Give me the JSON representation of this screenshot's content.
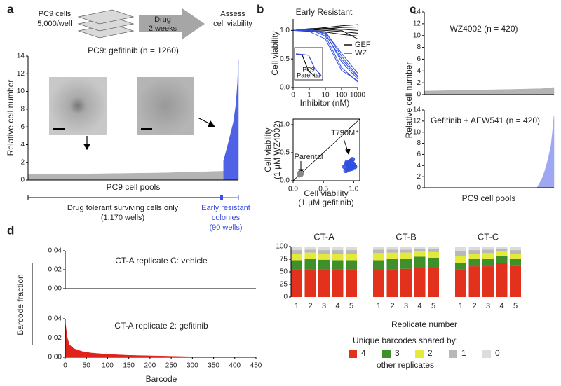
{
  "panel_labels": [
    "a",
    "b",
    "c",
    "d"
  ],
  "diagram": {
    "plate": [
      "PC9 cells",
      "5,000/well"
    ],
    "arrow": [
      "Drug",
      "2 weeks"
    ],
    "assess": [
      "Assess",
      "cell viability"
    ]
  },
  "notes": {
    "tolerant": [
      "Drug tolerant surviving cells only",
      "(1,170 wells)"
    ],
    "resistant": [
      "Early resistant",
      "colonies",
      "(90 wells)"
    ]
  },
  "chart_data": [
    {
      "type": "area",
      "title": "PC9: gefitinib (n = 1260)",
      "ylabel": "Relative cell number",
      "xlabel": "PC9 cell pools",
      "xlim": [
        0,
        1260
      ],
      "ylim": [
        0,
        14
      ],
      "yticks": [
        0,
        2,
        4,
        6,
        8,
        10,
        12,
        14
      ],
      "series": [
        {
          "color": "#b4b4b4",
          "x": [
            0,
            200,
            400,
            600,
            800,
            1000,
            1170
          ],
          "values": [
            0.6,
            0.65,
            0.7,
            0.75,
            0.8,
            0.9,
            1.0
          ]
        },
        {
          "color": "#4f61e6",
          "x": [
            1171,
            1190,
            1210,
            1230,
            1245,
            1255,
            1260
          ],
          "values": [
            2.2,
            3.5,
            5,
            6.5,
            8.5,
            11,
            13.5
          ]
        }
      ]
    },
    {
      "type": "line",
      "title": "Early Resistant",
      "ylabel": "Cell viability",
      "xlabel": "Inhibitor (nM)",
      "categories": [
        "0",
        "1",
        "10",
        "100",
        "1000"
      ],
      "ylim": [
        0,
        1.2
      ],
      "yticks": [
        {
          "value": 0,
          "label": "0.0"
        },
        {
          "value": 0.5,
          "label": "0.5"
        },
        {
          "value": 1,
          "label": "1.0"
        }
      ],
      "series": [
        {
          "name": "GEF",
          "color": "#111111",
          "values": [
            [
              1,
              1.02,
              1.05,
              1.08,
              1.1
            ],
            [
              1,
              1.0,
              1.03,
              1.05,
              1.06
            ],
            [
              1,
              1.01,
              1.0,
              0.98,
              0.95
            ],
            [
              1,
              1.03,
              1.04,
              1.02,
              1.0
            ],
            [
              1,
              0.99,
              0.97,
              0.93,
              0.9
            ],
            [
              1,
              1.02,
              1.02,
              1.0,
              0.85
            ]
          ]
        },
        {
          "name": "WZ",
          "color": "#2f4de0",
          "values": [
            [
              1,
              1.0,
              0.95,
              0.45,
              0.15
            ],
            [
              1,
              1.02,
              0.9,
              0.35,
              0.1
            ],
            [
              1,
              1.0,
              0.98,
              0.55,
              0.2
            ],
            [
              1,
              0.98,
              0.85,
              0.3,
              0.12
            ],
            [
              1,
              1.0,
              0.97,
              0.6,
              0.25
            ],
            [
              1,
              1.03,
              0.93,
              0.5,
              0.18
            ]
          ]
        }
      ]
    },
    {
      "type": "line",
      "annotations": [
        "PC9",
        "Parental"
      ],
      "ylim": [
        0,
        1.2
      ],
      "series": [
        {
          "color": "#111111",
          "values": [
            [
              1,
              0.95,
              0.3,
              0.1,
              0.1
            ]
          ]
        },
        {
          "color": "#2f4de0",
          "values": [
            [
              1,
              0.98,
              0.95,
              0.4,
              0.12
            ]
          ]
        }
      ]
    },
    {
      "type": "scatter",
      "ylabel": [
        "Cell viability",
        "(1 µM WZ4002)"
      ],
      "xlabel": [
        "Cell viability",
        "(1 µM gefitinib)"
      ],
      "annotations": [
        "Parental",
        "T790M⁺"
      ],
      "xlim": [
        0,
        1.1
      ],
      "ylim": [
        0,
        1.1
      ],
      "xticks": [
        {
          "value": 0,
          "label": "0.0"
        },
        {
          "value": 0.5,
          "label": "0.5"
        },
        {
          "value": 1,
          "label": "1.0"
        }
      ],
      "yticks": [
        {
          "value": 0,
          "label": "0.0"
        },
        {
          "value": 0.5,
          "label": "0.5"
        },
        {
          "value": 1,
          "label": "1.0"
        }
      ],
      "series": [
        {
          "color": "#888888",
          "x": [
            0.1,
            0.12,
            0.14,
            0.11,
            0.13
          ],
          "values": [
            0.1,
            0.12,
            0.13,
            0.14,
            0.11
          ]
        },
        {
          "color": "#2f4de0",
          "x": [
            0.85,
            0.88,
            0.9,
            0.92,
            0.95,
            0.97,
            1.0,
            0.87,
            0.93,
            0.96,
            0.99,
            0.91,
            0.94,
            0.89,
            1.02,
            0.98
          ],
          "values": [
            0.25,
            0.3,
            0.2,
            0.28,
            0.35,
            0.22,
            0.27,
            0.18,
            0.32,
            0.26,
            0.3,
            0.24,
            0.21,
            0.33,
            0.25,
            0.38
          ]
        }
      ]
    },
    {
      "type": "area",
      "title": "WZ4002 (n = 420)",
      "ylabel": "Relative cell number",
      "xlim": [
        0,
        420
      ],
      "ylim": [
        0,
        14
      ],
      "yticks": [
        0,
        2,
        4,
        6,
        8,
        10,
        12,
        14
      ],
      "series": [
        {
          "color": "#b4b4b4",
          "x": [
            0,
            100,
            200,
            300,
            380,
            420
          ],
          "values": [
            0.6,
            0.7,
            0.8,
            0.9,
            1.0,
            1.2
          ]
        }
      ]
    },
    {
      "type": "area",
      "title": "Gefitinib + AEW541 (n = 420)",
      "xlabel": "PC9 cell pools",
      "xlim": [
        0,
        420
      ],
      "ylim": [
        0,
        14
      ],
      "yticks": [
        0,
        2,
        4,
        6,
        8,
        10,
        12,
        14
      ],
      "series": [
        {
          "color": "#9ea8f2",
          "x": [
            0,
            365,
            370,
            380,
            390,
            400,
            410,
            415,
            420
          ],
          "values": [
            0,
            0,
            0.5,
            1.5,
            3,
            5,
            7.5,
            10,
            13
          ]
        }
      ]
    },
    {
      "type": "area",
      "title": "CT-A replicate C: vehicle",
      "ylabel": "Barcode fraction",
      "xlim": [
        0,
        450
      ],
      "ylim": [
        0,
        0.04
      ],
      "yticks": [
        {
          "value": 0,
          "label": "0.00"
        },
        {
          "value": 0.02,
          "label": "0.02"
        },
        {
          "value": 0.04,
          "label": "0.04"
        }
      ],
      "series": []
    },
    {
      "type": "area",
      "title": "CT-A replicate 2: gefitinib",
      "xlabel": "Barcode",
      "xlim": [
        0,
        450
      ],
      "ylim": [
        0,
        0.04
      ],
      "yticks": [
        {
          "value": 0,
          "label": "0.00"
        },
        {
          "value": 0.02,
          "label": "0.02"
        },
        {
          "value": 0.04,
          "label": "0.04"
        }
      ],
      "xticks": [
        0,
        50,
        100,
        150,
        200,
        250,
        300,
        350,
        400,
        450
      ],
      "series": [
        {
          "color": "#e0231a",
          "x": [
            0,
            2,
            5,
            10,
            20,
            40,
            60,
            100,
            150,
            200,
            250,
            300,
            330
          ],
          "values": [
            0.036,
            0.03,
            0.02,
            0.013,
            0.009,
            0.006,
            0.0045,
            0.003,
            0.002,
            0.0015,
            0.001,
            0.0005,
            0
          ]
        }
      ]
    },
    {
      "type": "stacked_bar",
      "xlabel": "Replicate number",
      "groups": [
        "CT-A",
        "CT-B",
        "CT-C"
      ],
      "categories": [
        "1",
        "2",
        "3",
        "4",
        "5",
        "1",
        "2",
        "3",
        "4",
        "5",
        "1",
        "2",
        "3",
        "4",
        "5"
      ],
      "ylim": [
        0,
        100
      ],
      "yticks": [
        0,
        25,
        50,
        75,
        100
      ],
      "legend_title": "Unique barcodes shared by:",
      "legend_footer": "other replicates",
      "series": [
        {
          "name": "4",
          "color": "#e2311d",
          "values": [
            55,
            55,
            55,
            55,
            55,
            53,
            55,
            56,
            58,
            57,
            55,
            61,
            61,
            67,
            63
          ]
        },
        {
          "name": "3",
          "color": "#3f8f2a",
          "values": [
            18,
            20,
            19,
            18,
            18,
            20,
            21,
            20,
            22,
            21,
            13,
            15,
            15,
            15,
            12
          ]
        },
        {
          "name": "2",
          "color": "#e3ea3a",
          "values": [
            12,
            13,
            12,
            12,
            12,
            14,
            12,
            12,
            10,
            11,
            14,
            10,
            11,
            8,
            11
          ]
        },
        {
          "name": "1",
          "color": "#b8b8b8",
          "values": [
            8,
            6,
            7,
            8,
            8,
            7,
            6,
            6,
            5,
            6,
            10,
            7,
            7,
            5,
            7
          ]
        },
        {
          "name": "0",
          "color": "#dcdcdc",
          "values": [
            7,
            6,
            7,
            7,
            7,
            6,
            6,
            6,
            5,
            5,
            8,
            7,
            6,
            5,
            7
          ]
        }
      ]
    }
  ]
}
